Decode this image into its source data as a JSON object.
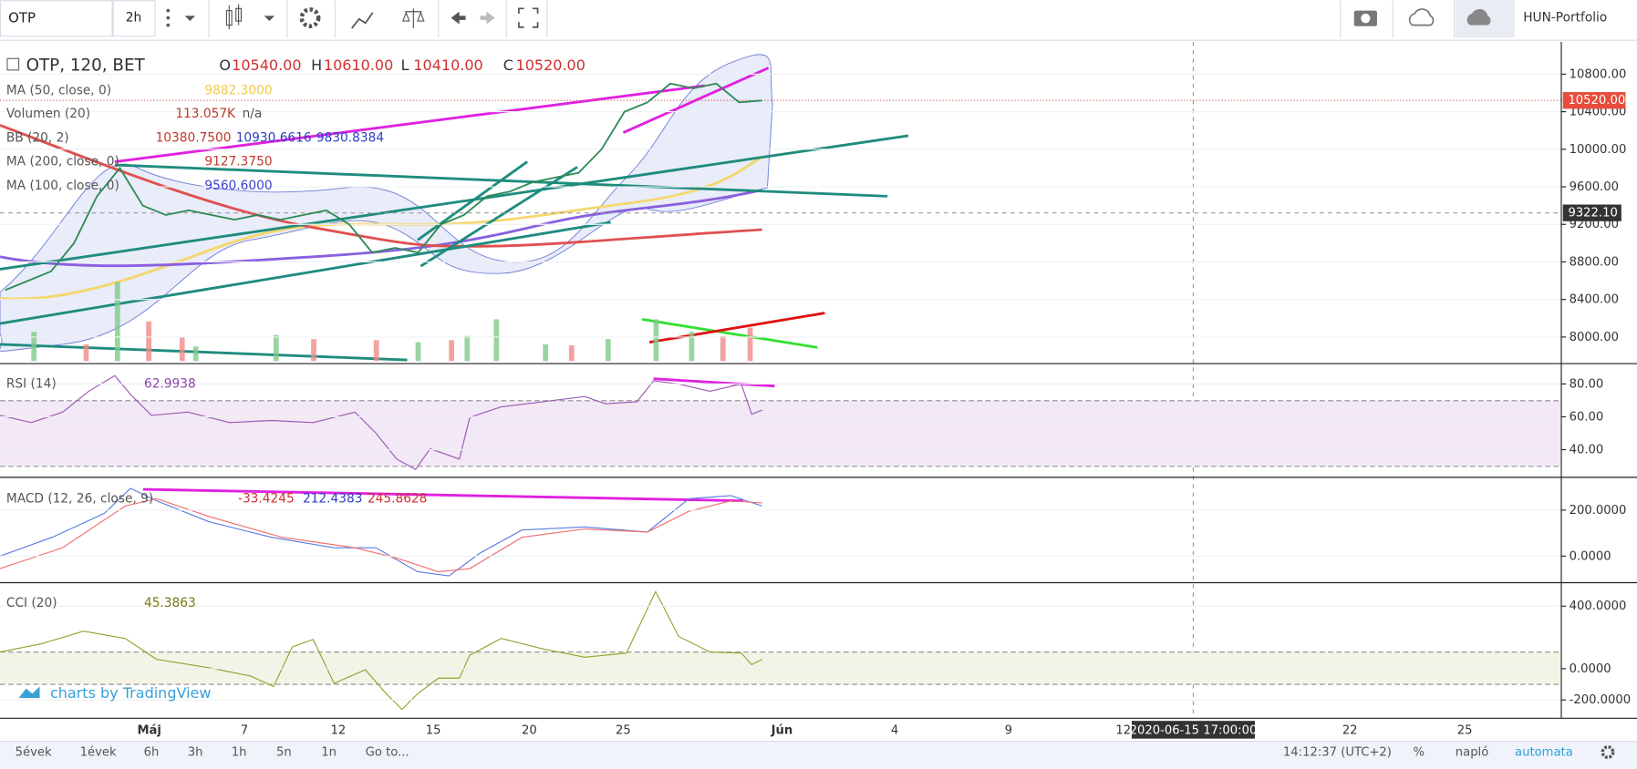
{
  "toolbar": {
    "symbol": "OTP",
    "interval": "2h",
    "portfolio": "HUN-Portfolio"
  },
  "main": {
    "title": "OTP, 120, BET",
    "ohlc": [
      {
        "label": "O",
        "value": "10540.00"
      },
      {
        "label": "H",
        "value": "10610.00"
      },
      {
        "label": "L",
        "value": "10410.00"
      },
      {
        "label": "C",
        "value": "10520.00"
      }
    ],
    "indicators": [
      {
        "name": "MA (50, close, 0)",
        "values": [
          "9882.3000"
        ],
        "color": "#f2c94c"
      },
      {
        "name": "Volumen (20)",
        "values": [
          "113.057K",
          "n/a"
        ],
        "color": "#c0392b"
      },
      {
        "name": "BB (20, 2)",
        "values": [
          "10380.7500",
          "10930.6616",
          "9830.8384"
        ],
        "color": "#c0392b"
      },
      {
        "name": "MA (200, close, 0)",
        "values": [
          "9127.3750"
        ],
        "color": "#c0392b"
      },
      {
        "name": "MA (100, close, 0)",
        "values": [
          "9560.6000"
        ],
        "color": "#3f3fcf"
      }
    ],
    "ylim": [
      7722,
      11144
    ],
    "yticks": [
      {
        "value": 10800,
        "label": "10800.00"
      },
      {
        "value": 10400,
        "label": "10400.00"
      },
      {
        "value": 10000,
        "label": "10000.00"
      },
      {
        "value": 9600,
        "label": "9600.00"
      },
      {
        "value": 9200,
        "label": "9200.00"
      },
      {
        "value": 8800,
        "label": "8800.00"
      },
      {
        "value": 8400,
        "label": "8400.00"
      },
      {
        "value": 8000,
        "label": "8000.00"
      }
    ],
    "last_price": {
      "value": 10520,
      "label": "10520.00"
    },
    "crosshair_price": {
      "value": 9322.1,
      "label": "9322.10"
    },
    "closes": [
      8500,
      8600,
      8700,
      9000,
      9500,
      9800,
      9400,
      9300,
      9350,
      9300,
      9250,
      9300,
      9250,
      9300,
      9350,
      9200,
      8900,
      8950,
      8900,
      9200,
      9300,
      9500,
      9550,
      9650,
      9700,
      9750,
      10000,
      10400,
      10500,
      10700,
      10650,
      10700,
      10500,
      10520
    ],
    "watermark": "charts by TradingView"
  },
  "rsi": {
    "name": "RSI (14)",
    "values": [
      "62.9938"
    ],
    "ylim": [
      24.1,
      91.4
    ],
    "yticks": [
      {
        "value": 80,
        "label": "80.00"
      },
      {
        "value": 60,
        "label": "60.00"
      },
      {
        "value": 40,
        "label": "40.00"
      }
    ]
  },
  "macd": {
    "name": "MACD (12, 26, close, 9)",
    "values": [
      "-33.4245",
      "212.4383",
      "245.8628"
    ],
    "ylim": [
      -109,
      336
    ],
    "yticks": [
      {
        "value": 200,
        "label": "200.0000"
      },
      {
        "value": 0,
        "label": "0.0000"
      }
    ]
  },
  "cci": {
    "name": "CCI (20)",
    "values": [
      "45.3863"
    ],
    "ylim": [
      -307,
      540
    ],
    "yticks": [
      {
        "value": 400,
        "label": "400.0000"
      },
      {
        "value": 0,
        "label": "0.0000"
      },
      {
        "value": -200,
        "label": "-200.0000"
      }
    ]
  },
  "dates": [
    "Máj",
    "7",
    "12",
    "15",
    "20",
    "25",
    "Jún",
    "4",
    "9",
    "12",
    "22",
    "25"
  ],
  "crosshair_date": "2020-06-15 17:00:00",
  "bottom": {
    "ranges": [
      "5évek",
      "1évek",
      "6h",
      "3h",
      "1h",
      "5n",
      "1n"
    ],
    "goto": "Go to...",
    "time": "14:12:37 (UTC+2)",
    "percent": "%",
    "log": "napló",
    "auto": "automata"
  }
}
